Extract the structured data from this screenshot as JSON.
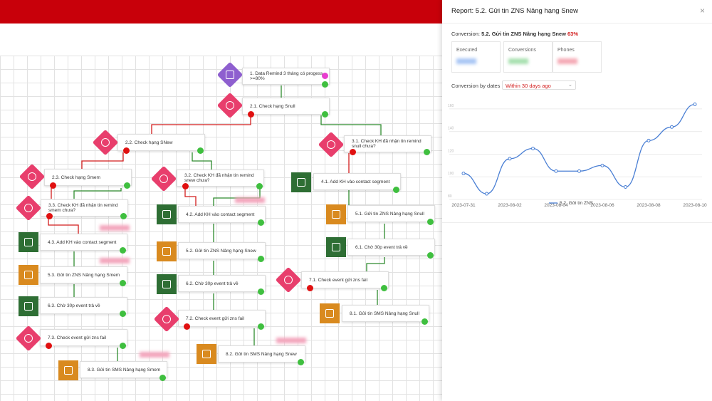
{
  "panel": {
    "title": "Report: 5.2. Gửi tin ZNS Nâng hạng Snew",
    "close": "×",
    "conversion_label": "Conversion:",
    "conversion_step": "5.2. Gửi tin ZNS Nâng hạng Snew",
    "conversion_rate": "63%",
    "stats": [
      "Executed",
      "Conversions",
      "Phones"
    ],
    "dates_label": "Conversion by dates",
    "range": "Within 30 days ago"
  },
  "nodes": [
    "1. Data Remind 3 tháng có progess >=80%",
    "2.1. Check hạng Snull",
    "2.2. Check hạng SNew",
    "3.1. Check KH đã nhận tin remind snull chưa?",
    "2.3. Check hạng Smem",
    "3.2. Check KH đã nhận tin remind snew chưa?",
    "4.1. Add KH vào contact segment",
    "3.3. Check KH đã nhận tin remind smem chưa?",
    "4.2. Add KH vào contact segment",
    "5.1. Gửi tin ZNS Nâng hạng Snull",
    "4.3. Add KH vào contact segment",
    "6.1. Chờ 30p event trả về",
    "5.2. Gửi tin ZNS Nâng hạng Snew",
    "5.3. Gửi tin ZNS Nâng hạng Smem",
    "7.1. Check event gửi zns fail",
    "6.2. Chờ 30p event trả về",
    "6.3. Chờ 30p event trả về",
    "8.1. Gửi tin SMS Nâng hạng Snull",
    "7.2. Check event gửi zns fail",
    "7.3. Check event gửi zns fail",
    "8.2. Gửi tin SMS Nâng hạng Snew",
    "8.3. Gửi tin SMS Nâng hạng Smem"
  ],
  "chart_data": {
    "type": "line",
    "categories": [
      "2023-07-31",
      null,
      "2023-08-02",
      null,
      "2023-08-04",
      null,
      "2023-08-06",
      null,
      "2023-08-08",
      null,
      "2023-08-10"
    ],
    "series": [
      {
        "name": "5.2. Gửi tin ZNS",
        "color": "#4a7fd4",
        "values": [
          103,
          85,
          116,
          125,
          105,
          105,
          110,
          91,
          132,
          144,
          164
        ]
      }
    ],
    "ylim": [
      80,
      170
    ],
    "yticks": [
      80,
      100,
      120,
      140,
      160
    ],
    "grid": true
  }
}
